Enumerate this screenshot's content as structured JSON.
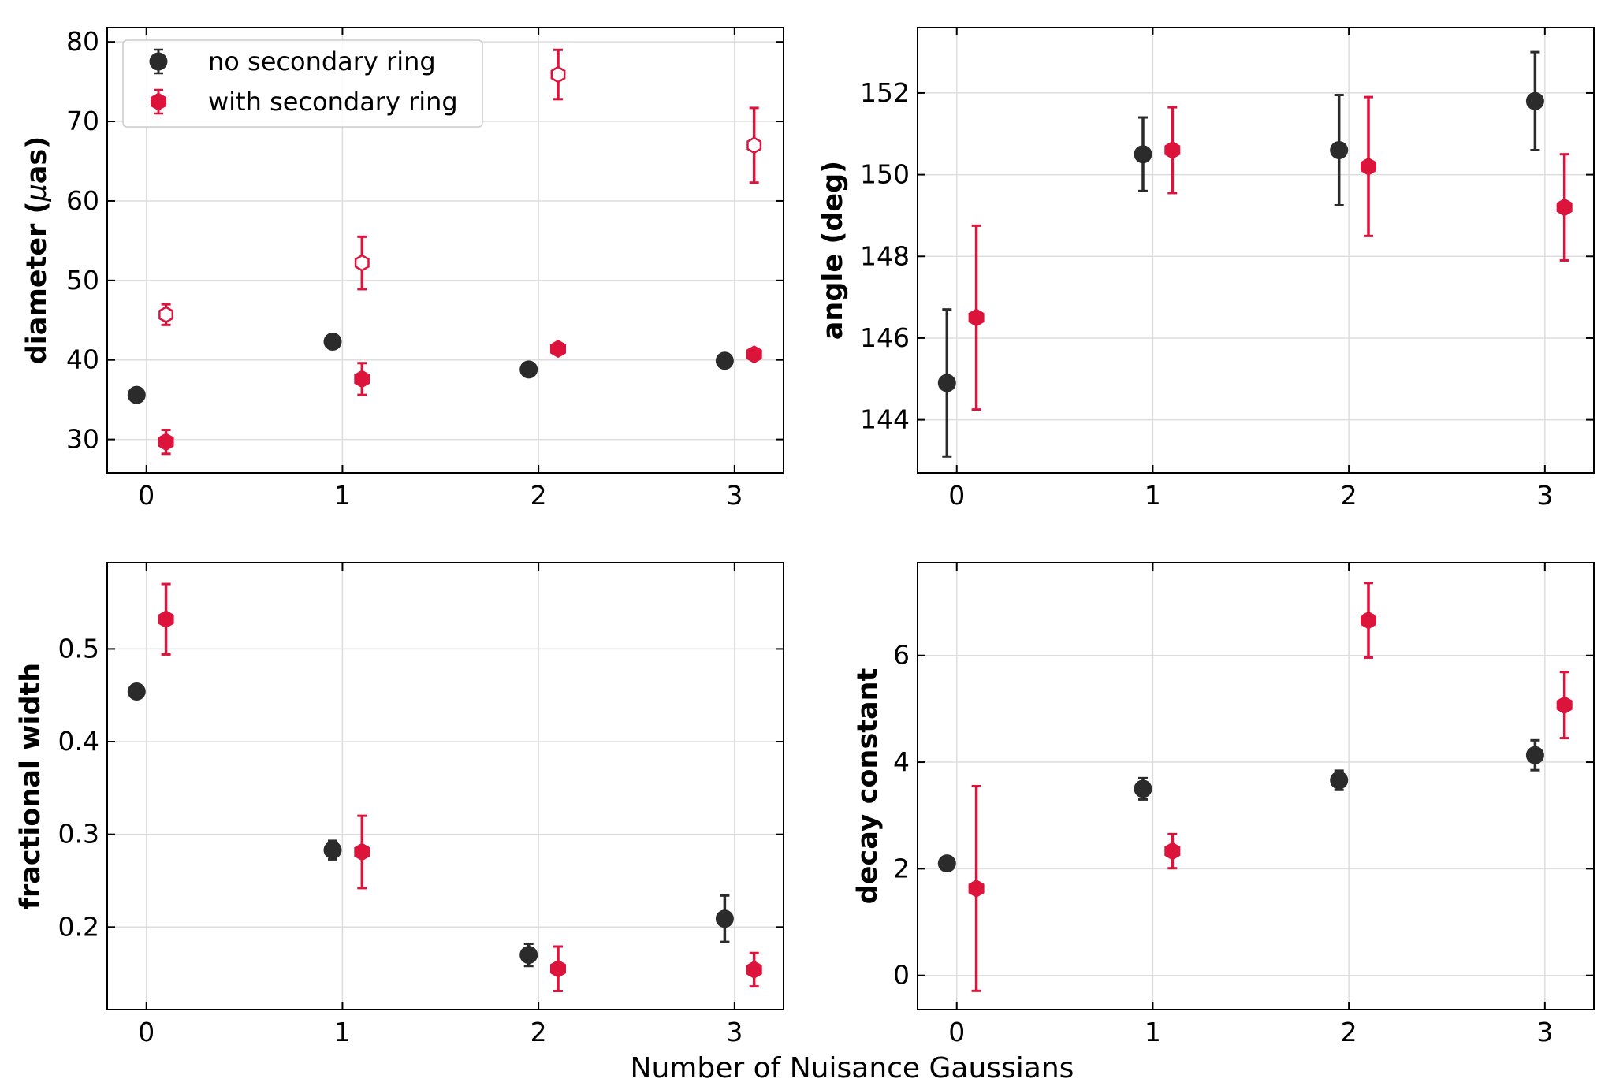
{
  "figure": {
    "shared_xlabel": "Number of Nuisance Gaussians"
  },
  "colors": {
    "no_secondary": "#2b2b2b",
    "with_secondary": "#dc143c",
    "grid": "#dddddd"
  },
  "legend": {
    "entries": [
      "no secondary ring",
      "with secondary ring"
    ]
  },
  "chart_data": [
    {
      "type": "scatter",
      "panel": "top-left",
      "ylabel_main": "diameter (",
      "ylabel_mu": "μ",
      "ylabel_rest": "as)",
      "xlim": [
        -0.2,
        3.25
      ],
      "ylim": [
        25.8,
        81.8
      ],
      "xticks": [
        0,
        1,
        2,
        3
      ],
      "yticks": [
        30,
        40,
        50,
        60,
        70,
        80
      ],
      "legend_loc": "upper-left",
      "series": [
        {
          "name": "no secondary ring",
          "marker": "circle",
          "filled": true,
          "x": [
            -0.05,
            0.95,
            1.95,
            2.95
          ],
          "y": [
            35.6,
            42.3,
            38.8,
            39.9
          ],
          "err": [
            0.5,
            0.5,
            0.5,
            0.5
          ]
        },
        {
          "name": "with secondary ring",
          "marker": "hexagon",
          "filled": true,
          "x": [
            0.1,
            1.1,
            2.1,
            3.1
          ],
          "y": [
            29.7,
            37.6,
            41.4,
            40.7
          ],
          "err": [
            1.5,
            2.0,
            0.6,
            0.6
          ]
        },
        {
          "name": "with secondary ring (secondary)",
          "marker": "hexagon",
          "filled": false,
          "x": [
            0.1,
            1.1,
            2.1,
            3.1
          ],
          "y": [
            45.7,
            52.2,
            75.9,
            67.0
          ],
          "err": [
            1.3,
            3.3,
            3.1,
            4.7
          ]
        }
      ]
    },
    {
      "type": "scatter",
      "panel": "top-right",
      "ylabel": "angle (deg)",
      "xlim": [
        -0.2,
        3.25
      ],
      "ylim": [
        142.7,
        153.6
      ],
      "xticks": [
        0,
        1,
        2,
        3
      ],
      "yticks": [
        144,
        146,
        148,
        150,
        152
      ],
      "series": [
        {
          "name": "no secondary ring",
          "marker": "circle",
          "filled": true,
          "x": [
            -0.05,
            0.95,
            1.95,
            2.95
          ],
          "y": [
            144.9,
            150.5,
            150.6,
            151.8
          ],
          "err": [
            1.8,
            0.9,
            1.35,
            1.2
          ]
        },
        {
          "name": "with secondary ring",
          "marker": "hexagon",
          "filled": true,
          "x": [
            0.1,
            1.1,
            2.1,
            3.1
          ],
          "y": [
            146.5,
            150.6,
            150.2,
            149.2
          ],
          "err": [
            2.25,
            1.05,
            1.7,
            1.3
          ]
        }
      ]
    },
    {
      "type": "scatter",
      "panel": "bottom-left",
      "ylabel": "fractional width",
      "xlim": [
        -0.2,
        3.25
      ],
      "ylim": [
        0.111,
        0.593
      ],
      "xticks": [
        0,
        1,
        2,
        3
      ],
      "yticks": [
        0.2,
        0.3,
        0.4,
        0.5
      ],
      "series": [
        {
          "name": "no secondary ring",
          "marker": "circle",
          "filled": true,
          "x": [
            -0.05,
            0.95,
            1.95,
            2.95
          ],
          "y": [
            0.454,
            0.283,
            0.17,
            0.209
          ],
          "err": [
            0.005,
            0.01,
            0.012,
            0.025
          ]
        },
        {
          "name": "with secondary ring",
          "marker": "hexagon",
          "filled": true,
          "x": [
            0.1,
            1.1,
            2.1,
            3.1
          ],
          "y": [
            0.532,
            0.281,
            0.155,
            0.154
          ],
          "err": [
            0.038,
            0.039,
            0.024,
            0.018
          ]
        }
      ]
    },
    {
      "type": "scatter",
      "panel": "bottom-right",
      "ylabel": "decay constant",
      "xlim": [
        -0.2,
        3.25
      ],
      "ylim": [
        -0.64,
        7.74
      ],
      "xticks": [
        0,
        1,
        2,
        3
      ],
      "yticks": [
        0,
        2,
        4,
        6
      ],
      "series": [
        {
          "name": "no secondary ring",
          "marker": "circle",
          "filled": true,
          "x": [
            -0.05,
            0.95,
            1.95,
            2.95
          ],
          "y": [
            2.1,
            3.5,
            3.66,
            4.13
          ],
          "err": [
            0.08,
            0.2,
            0.18,
            0.28
          ]
        },
        {
          "name": "with secondary ring",
          "marker": "hexagon",
          "filled": true,
          "x": [
            0.1,
            1.1,
            2.1,
            3.1
          ],
          "y": [
            1.63,
            2.33,
            6.66,
            5.07
          ],
          "err": [
            1.92,
            0.32,
            0.7,
            0.62
          ]
        }
      ]
    }
  ]
}
